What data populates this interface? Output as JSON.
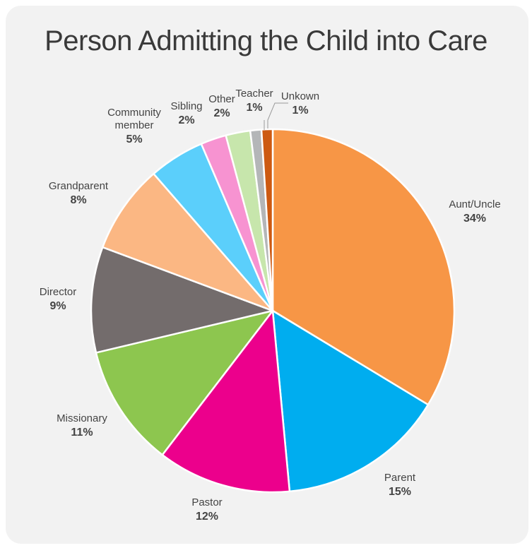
{
  "chart_data": {
    "type": "pie",
    "title": "Person Admitting the Child into Care",
    "slices": [
      {
        "label": "Aunt/Uncle",
        "pct_label": "34%",
        "value": 34,
        "color": "#f79646"
      },
      {
        "label": "Parent",
        "pct_label": "15%",
        "value": 15,
        "color": "#00adef"
      },
      {
        "label": "Pastor",
        "pct_label": "12%",
        "value": 12,
        "color": "#ec008c"
      },
      {
        "label": "Missionary",
        "pct_label": "11%",
        "value": 11,
        "color": "#8dc64f"
      },
      {
        "label": "Director",
        "pct_label": "9%",
        "value": 9.5,
        "color": "#736c6c"
      },
      {
        "label": "Grandparent",
        "pct_label": "8%",
        "value": 8,
        "color": "#fbb783"
      },
      {
        "label": "Community member",
        "pct_label": "5%",
        "value": 5,
        "color": "#5bcffb"
      },
      {
        "label": "Sibling",
        "pct_label": "2%",
        "value": 2.3,
        "color": "#f793d1"
      },
      {
        "label": "Other",
        "pct_label": "2%",
        "value": 2.2,
        "color": "#c7e6ac"
      },
      {
        "label": "Teacher",
        "pct_label": "1%",
        "value": 1,
        "color": "#b4b6b8"
      },
      {
        "label": "Unkown",
        "pct_label": "1%",
        "value": 1,
        "color": "#cd5a12"
      }
    ]
  }
}
